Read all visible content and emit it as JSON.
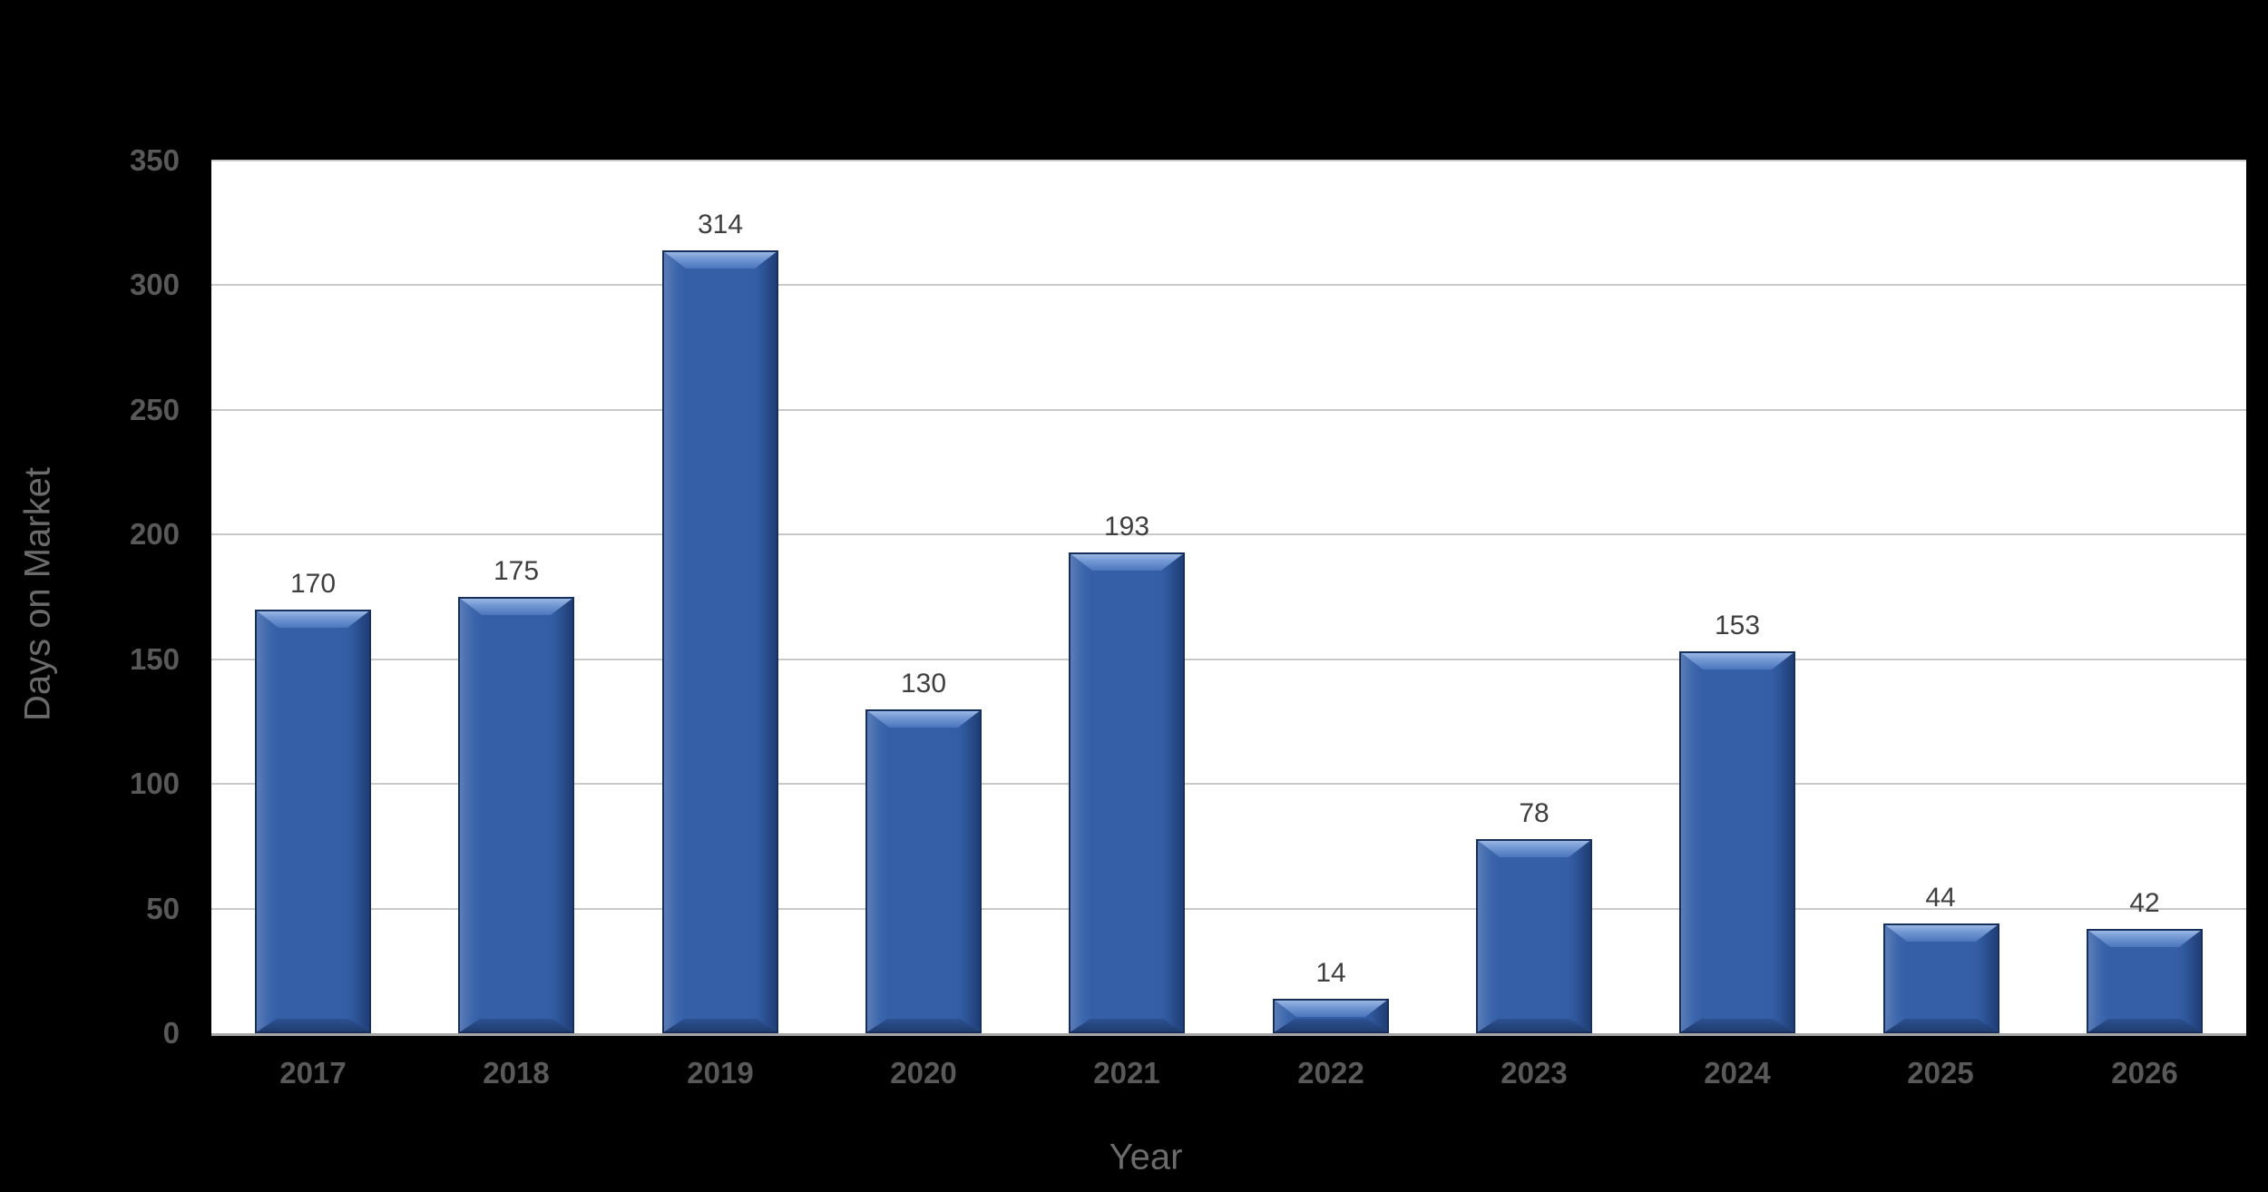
{
  "chart_theme": {
    "background_color": "#000000",
    "plot_background_color": "#FFFFFF",
    "gridline_color": "#C9C9C9",
    "axis_line_color": "#A6A6A6",
    "tick_label_color": "#595959",
    "axis_title_color": "#6B6B6B",
    "data_label_color": "#3F3F3F",
    "bar_fill_color": "#3560A8",
    "bar_border_color": "#17305B",
    "bar_bevel_highlight_color": "#A6BFE8",
    "bar_bevel_shadow_color": "#1D3A6B"
  },
  "chart_data": {
    "type": "bar",
    "title": "",
    "categories": [
      "2017",
      "2018",
      "2019",
      "2020",
      "2021",
      "2022",
      "2023",
      "2024",
      "2025",
      "2026"
    ],
    "values": [
      170,
      175,
      314,
      130,
      193,
      14,
      78,
      153,
      44,
      42
    ],
    "xlabel": "Year",
    "ylabel": "Days on Market",
    "ylim": [
      0,
      350
    ],
    "ytick_interval": 50,
    "ytick_labels": [
      "0",
      "50",
      "100",
      "150",
      "200",
      "250",
      "300",
      "350"
    ],
    "grid": true,
    "legend": false,
    "data_labels": true,
    "layout_hints": {
      "gridlines": "horizontal only",
      "legend_position": "none",
      "bar_style": "3d-bevel"
    }
  }
}
